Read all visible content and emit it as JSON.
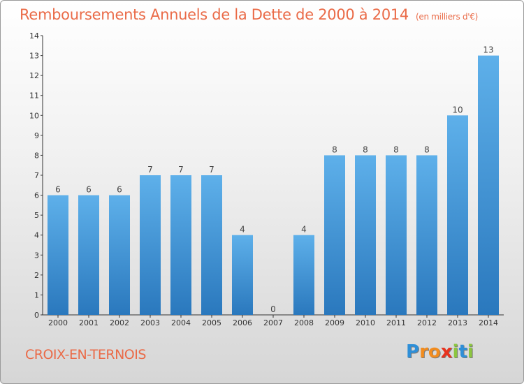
{
  "title": "Remboursements Annuels de la Dette de 2000 à 2014",
  "unit_note": "(en milliers d'€)",
  "commune": "CROIX-EN-TERNOIS",
  "logo": {
    "letters": [
      "P",
      "r",
      "o",
      "x",
      "i",
      "t",
      "i"
    ],
    "colors": [
      "#2e8fd8",
      "#f28c1e",
      "#f28c1e",
      "#e8331e",
      "#8cc63f",
      "#2e8fd8",
      "#8cc63f"
    ]
  },
  "chart_data": {
    "type": "bar",
    "categories": [
      "2000",
      "2001",
      "2002",
      "2003",
      "2004",
      "2005",
      "2006",
      "2007",
      "2008",
      "2009",
      "2010",
      "2011",
      "2012",
      "2013",
      "2014"
    ],
    "values": [
      6,
      6,
      6,
      7,
      7,
      7,
      4,
      0,
      4,
      8,
      8,
      8,
      8,
      10,
      13
    ],
    "data_labels": [
      "6",
      "6",
      "6",
      "7",
      "7",
      "7",
      "4",
      "0",
      "4",
      "8",
      "8",
      "8",
      "8",
      "10",
      "13"
    ],
    "yticks": [
      0,
      1,
      2,
      3,
      4,
      5,
      6,
      7,
      8,
      9,
      10,
      11,
      12,
      13,
      14
    ],
    "ylim": [
      0,
      14
    ],
    "grid": false,
    "bar_color": "#3b8fd6"
  }
}
